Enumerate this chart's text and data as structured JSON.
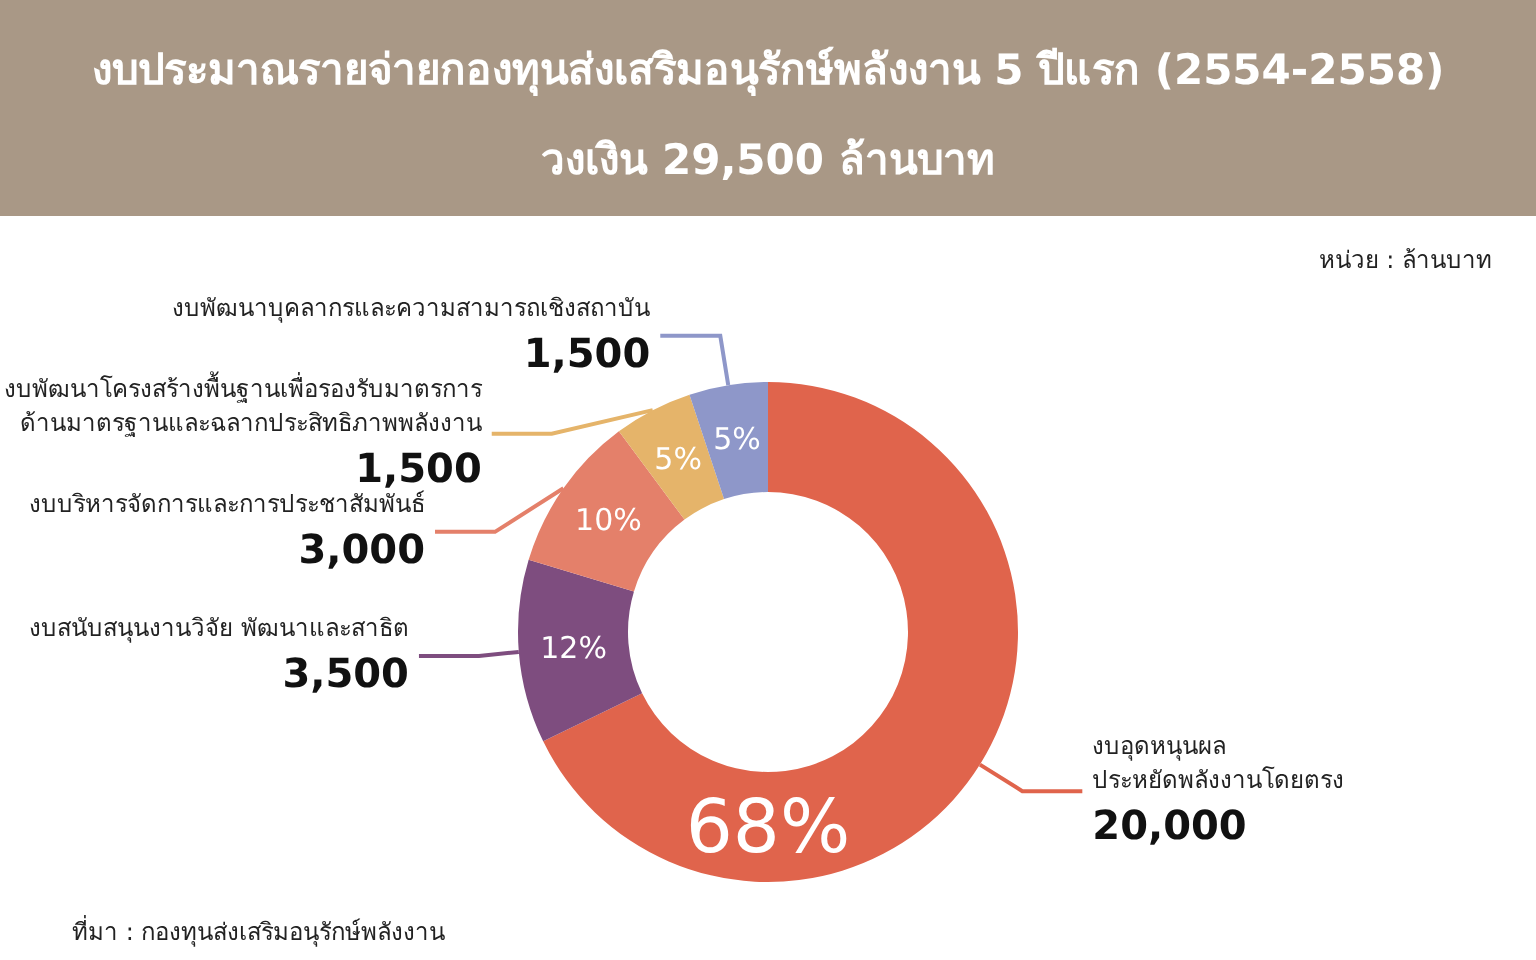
{
  "chart_data": {
    "type": "donut",
    "title": "งบประมาณรายจ่ายกองทุนส่งเสริมอนุรักษ์พลังงาน 5 ปีแรก (2554-2558)",
    "subtitle": "วงเงิน  29,500 ล้านบาท",
    "categories": [
      "งบอุดหนุนผล\nประหยัดพลังงานโดยตรง",
      "งบสนับสนุนงานวิจัย พัฒนาและสาธิต",
      "งบบริหารจัดการและการประชาสัมพันธ์",
      "งบพัฒนาโครงสร้างพื้นฐานเพื่อรองรับมาตรการ\nด้านมาตรฐานและฉลากประสิทธิภาพพลังงาน",
      "งบพัฒนาบุคลากรและความสามารถเชิงสถาบัน"
    ],
    "values": [
      20000,
      3500,
      3000,
      1500,
      1500
    ],
    "colors": [
      "#e0644c",
      "#7e4d7f",
      "#e4806a",
      "#e5b46a",
      "#8e97c9"
    ],
    "value_labels": [
      "20,000",
      "3,500",
      "3,000",
      "1,500",
      "1,500"
    ],
    "data_labels": true,
    "legend": false,
    "annotations": [
      "หน่วย : ล้านบาท",
      "ที่มา : กองทุนส่งเสริมอนุรักษ์พลังงาน",
      {
        "text": "68%",
        "x": "งบอุดหนุนผล\nประหยัดพลังงานโดยตรง"
      },
      {
        "text": "12%",
        "x": "งบสนับสนุนงานวิจัย พัฒนาและสาธิต"
      },
      {
        "text": "10%",
        "x": "งบบริหารจัดการและการประชาสัมพันธ์"
      },
      {
        "text": "5%",
        "x": "งบพัฒนาโครงสร้างพื้นฐานเพื่อรองรับมาตรการ\nด้านมาตรฐานและฉลากประสิทธิภาพพลังงาน"
      },
      {
        "text": "5%",
        "x": "งบพัฒนาบุคลากรและความสามารถเชิงสถาบัน"
      }
    ]
  }
}
